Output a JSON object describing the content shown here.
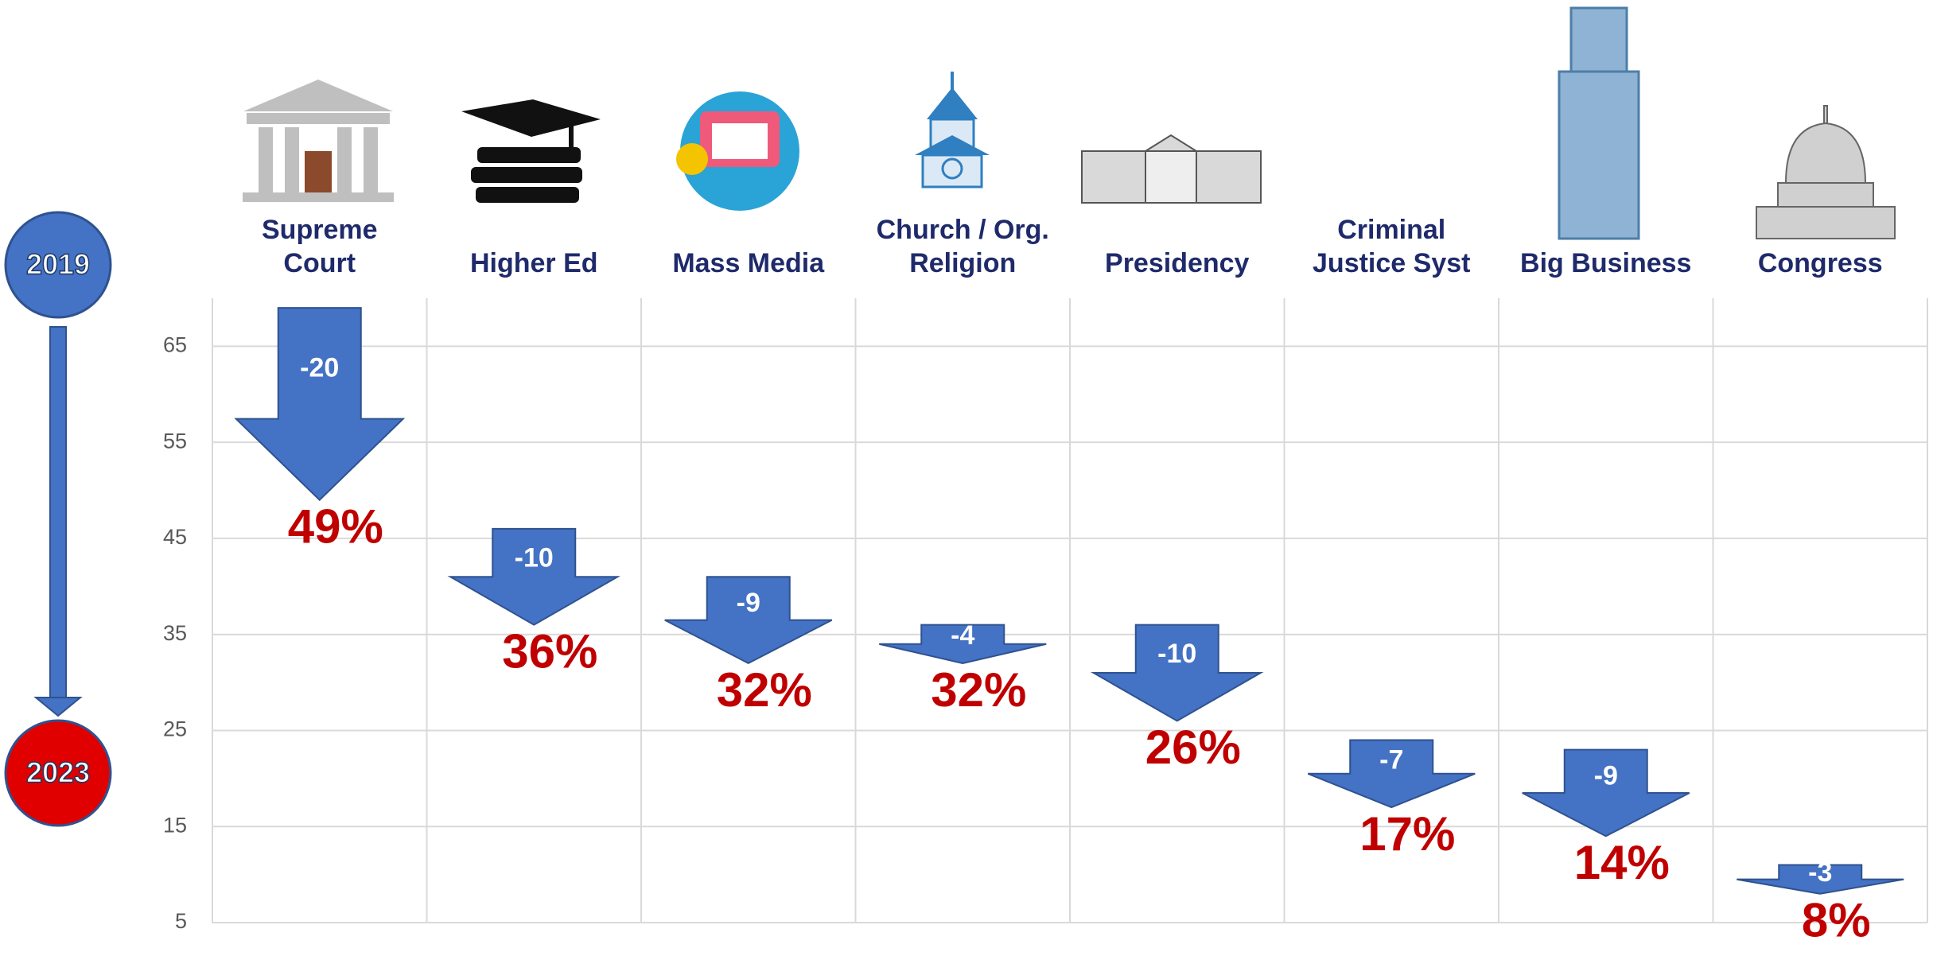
{
  "chart_data": {
    "type": "arrow",
    "categories": [
      "Supreme\nCourt",
      "Higher Ed",
      "Mass Media",
      "Church / Org.\nReligion",
      "Presidency",
      "Criminal\nJustice Syst",
      "Big Business",
      "Congress"
    ],
    "series": [
      {
        "name": "2019",
        "color": "#4472c4",
        "values": [
          69,
          46,
          41,
          36,
          36,
          24,
          23,
          11
        ]
      },
      {
        "name": "2023",
        "color": "#e00000",
        "values": [
          49,
          36,
          32,
          32,
          26,
          17,
          14,
          8
        ],
        "value_labels": [
          "49%",
          "36%",
          "32%",
          "32%",
          "26%",
          "17%",
          "14%",
          "8%"
        ]
      }
    ],
    "changes": [
      -20,
      -10,
      -9,
      -4,
      -10,
      -7,
      -9,
      -3
    ],
    "arrow_color": "#4472c4",
    "label_color": "#c00000",
    "ylim": [
      5,
      70
    ],
    "yticks": [
      5,
      15,
      25,
      35,
      45,
      55,
      65
    ],
    "grid": true
  }
}
